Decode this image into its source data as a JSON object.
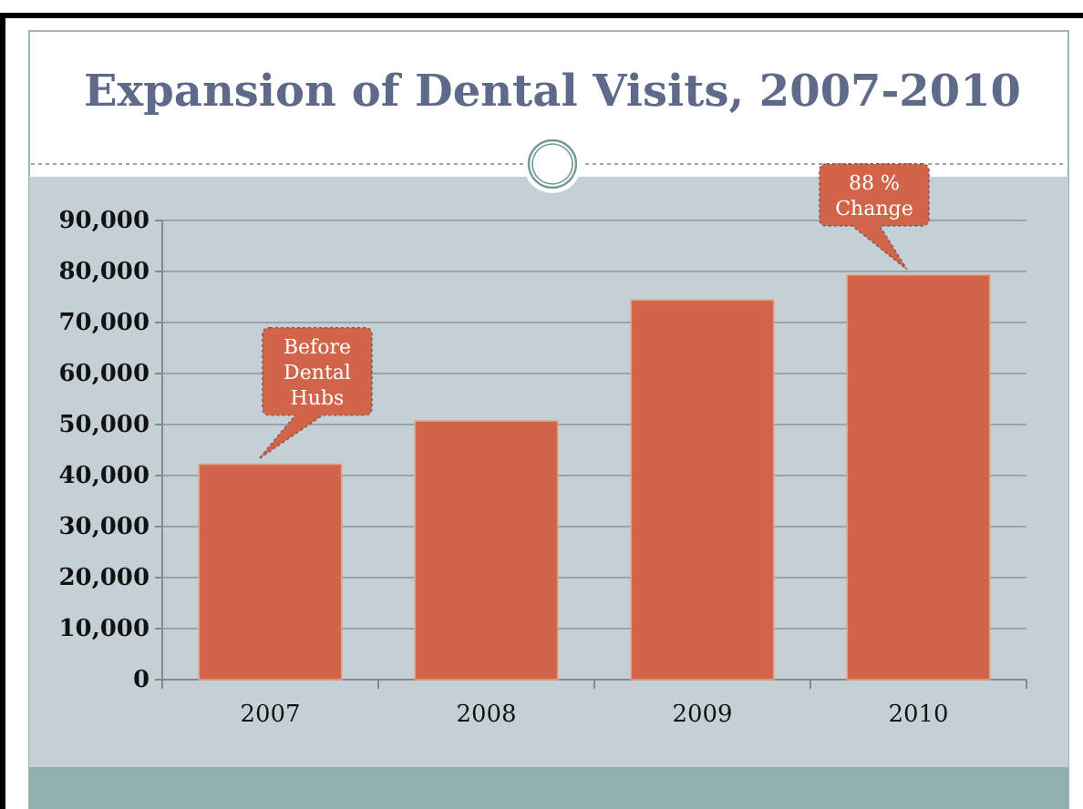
{
  "chart_data": {
    "type": "bar",
    "title": "Expansion of Dental Visits, 2007-2010",
    "categories": [
      "2007",
      "2008",
      "2009",
      "2010"
    ],
    "values": [
      42200,
      50700,
      74400,
      79300
    ],
    "color": "#d2644a",
    "ylim": [
      0,
      90000
    ],
    "yticks": [
      {
        "value": 0,
        "label": "0"
      },
      {
        "value": 10000,
        "label": "10,000"
      },
      {
        "value": 20000,
        "label": "20,000"
      },
      {
        "value": 30000,
        "label": "30,000"
      },
      {
        "value": 40000,
        "label": "40,000"
      },
      {
        "value": 50000,
        "label": "50,000"
      },
      {
        "value": 60000,
        "label": "60,000"
      },
      {
        "value": 70000,
        "label": "70,000"
      },
      {
        "value": 80000,
        "label": "80,000"
      },
      {
        "value": 90000,
        "label": "90,000"
      }
    ],
    "grid": "y",
    "annotations": [
      {
        "text": "Before\nDental\nHubs",
        "x": "2007",
        "y": 42200
      },
      {
        "text": "88 %\nChange",
        "x": "2010",
        "y": 79300
      }
    ]
  }
}
